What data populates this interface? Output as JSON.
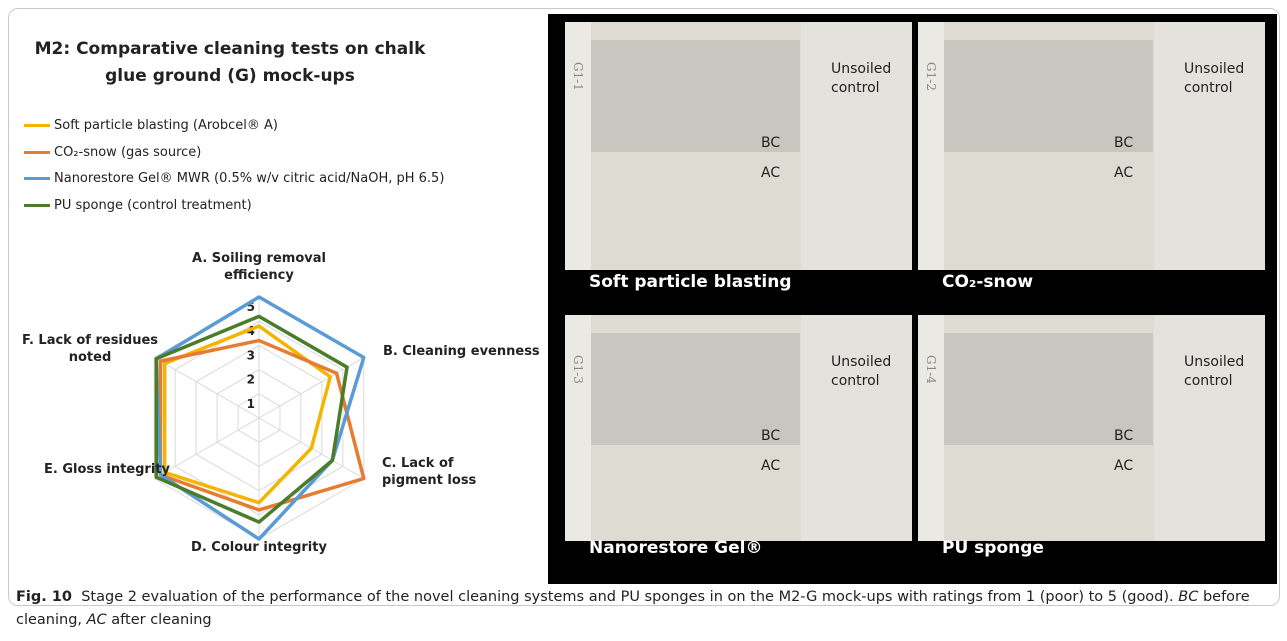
{
  "chart_data": {
    "type": "radar",
    "title": "M2: Comparative cleaning tests on chalk glue ground (G) mock-ups",
    "categories": [
      "A. Soiling removal efficiency",
      "B. Cleaning evenness",
      "C. Lack of pigment loss",
      "D. Colour integrity",
      "E. Gloss integrity",
      "F. Lack of residues noted"
    ],
    "rlim": [
      0,
      5
    ],
    "rticks": [
      1,
      2,
      3,
      4,
      5
    ],
    "grid": true,
    "series": [
      {
        "name": "Soft particle blasting (Arobcel® A)",
        "color": "#f4b400",
        "values": [
          3.8,
          3.4,
          2.5,
          3.5,
          4.5,
          4.5
        ]
      },
      {
        "name": "CO₂-snow (gas source)",
        "color": "#e57c32",
        "values": [
          3.2,
          3.7,
          5,
          3.8,
          4.7,
          4.7
        ]
      },
      {
        "name": "Nanorestore Gel® MWR (0.5% w/v citric acid/NaOH, pH 6.5)",
        "color": "#5b9bd5",
        "values": [
          5,
          5,
          3.5,
          5,
          4.7,
          4.9
        ]
      },
      {
        "name": "PU sponge (control treatment)",
        "color": "#4a7c2a",
        "values": [
          4.2,
          4.2,
          3.5,
          4.3,
          4.9,
          4.9
        ]
      }
    ]
  },
  "photos": [
    {
      "label": "Soft particle blasting",
      "sample": "G1-1",
      "control": "Unsoiled control",
      "before": "BC",
      "after": "AC"
    },
    {
      "label": "CO₂-snow",
      "sample": "G1-2",
      "control": "Unsoiled control",
      "before": "BC",
      "after": "AC"
    },
    {
      "label": "Nanorestore Gel®",
      "sample": "G1-3",
      "control": "Unsoiled control",
      "before": "BC",
      "after": "AC"
    },
    {
      "label": "PU sponge",
      "sample": "G1-4",
      "control": "Unsoiled control",
      "before": "BC",
      "after": "AC"
    }
  ],
  "caption": {
    "label": "Fig. 10",
    "text": "Stage 2 evaluation of the performance of the novel cleaning systems and PU sponges in on the M2-G mock-ups with ratings from 1 (poor) to 5 (good).",
    "bc": "BC",
    "bc_text": "before cleaning,",
    "ac": "AC",
    "ac_text": "after cleaning"
  }
}
